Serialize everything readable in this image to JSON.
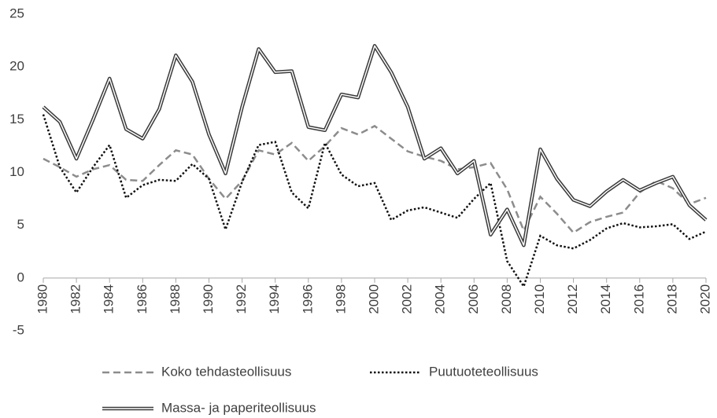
{
  "chart_data": {
    "type": "line",
    "x": [
      1980,
      1981,
      1982,
      1983,
      1984,
      1985,
      1986,
      1987,
      1988,
      1989,
      1990,
      1991,
      1992,
      1993,
      1994,
      1995,
      1996,
      1997,
      1998,
      1999,
      2000,
      2001,
      2002,
      2003,
      2004,
      2005,
      2006,
      2007,
      2008,
      2009,
      2010,
      2011,
      2012,
      2013,
      2014,
      2015,
      2016,
      2017,
      2018,
      2019,
      2020
    ],
    "xlim": [
      1980,
      2020
    ],
    "xticks": [
      1980,
      1982,
      1984,
      1986,
      1988,
      1990,
      1992,
      1994,
      1996,
      1998,
      2000,
      2002,
      2004,
      2006,
      2008,
      2010,
      2012,
      2014,
      2016,
      2018,
      2020
    ],
    "ylim": [
      -5,
      25
    ],
    "yticks": [
      -5,
      0,
      5,
      10,
      15,
      20,
      25
    ],
    "grid": false,
    "legend": "bottom",
    "series": [
      {
        "name": "Koko tehdasteollisuus",
        "color": "#8c8c8c",
        "line_style": "dashed",
        "values": [
          11.3,
          10.5,
          9.6,
          10.3,
          10.7,
          9.3,
          9.2,
          10.7,
          12.1,
          11.7,
          9.4,
          7.5,
          9.2,
          12.1,
          11.7,
          12.8,
          11.1,
          12.5,
          14.2,
          13.6,
          14.4,
          13.2,
          12,
          11.5,
          11.1,
          10.3,
          10.5,
          10.9,
          8.4,
          4.5,
          7.7,
          6.1,
          4.3,
          5.3,
          5.8,
          6.2,
          8.1,
          9.2,
          8.5,
          7,
          7.6
        ]
      },
      {
        "name": "Puutuoteteollisuus",
        "color": "#111111",
        "line_style": "dotted",
        "values": [
          15.5,
          10.5,
          8.1,
          10.5,
          12.6,
          7.6,
          8.8,
          9.3,
          9.2,
          10.8,
          9.4,
          4.6,
          9.1,
          12.6,
          12.9,
          8.1,
          6.6,
          12.8,
          9.8,
          8.7,
          9,
          5.5,
          6.4,
          6.7,
          6.2,
          5.7,
          7.5,
          9,
          1.6,
          -0.8,
          4,
          3.1,
          2.8,
          3.6,
          4.7,
          5.2,
          4.8,
          4.9,
          5.1,
          3.7,
          4.4
        ]
      },
      {
        "name": "Massa- ja paperiteollisuus",
        "color": "#3a3a3a",
        "line_style": "double",
        "values": [
          16.2,
          14.8,
          11.3,
          15,
          18.9,
          14.1,
          13.2,
          16,
          21.1,
          18.6,
          13.6,
          9.9,
          16.2,
          21.7,
          19.5,
          19.6,
          14.3,
          14,
          17.4,
          17.1,
          22,
          19.5,
          16.2,
          11.3,
          12.3,
          9.9,
          11.1,
          4.1,
          6.5,
          3.1,
          12.2,
          9.4,
          7.4,
          6.8,
          8.2,
          9.3,
          8.3,
          9,
          9.6,
          6.9,
          5.5
        ]
      }
    ]
  }
}
